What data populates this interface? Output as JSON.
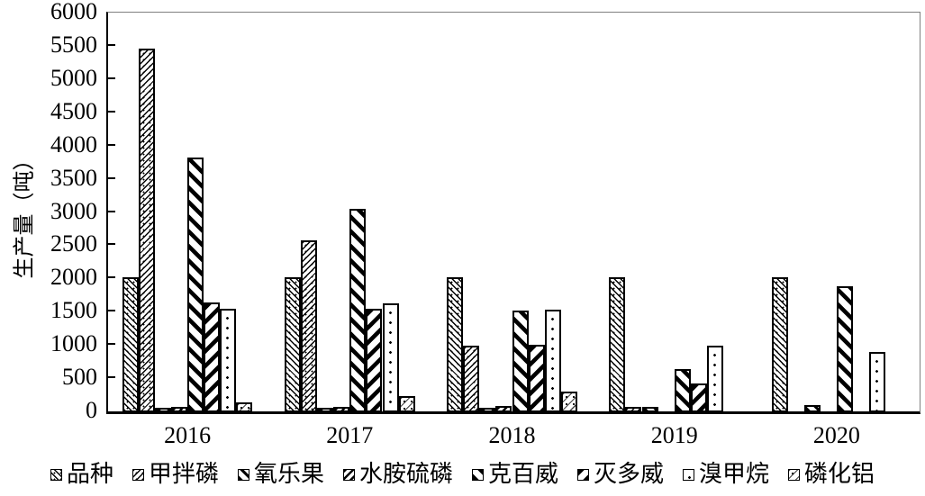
{
  "chart_data": {
    "type": "bar",
    "title": "",
    "xlabel": "",
    "ylabel": "生产量（吨）",
    "categories": [
      "2016",
      "2017",
      "2018",
      "2019",
      "2020"
    ],
    "series": [
      {
        "name": "品种",
        "pattern": "thin-backslash",
        "values": [
          2000,
          2000,
          2000,
          2000,
          2000
        ]
      },
      {
        "name": "甲拌磷",
        "pattern": "thin-slash",
        "values": [
          5450,
          2560,
          980,
          60,
          0
        ]
      },
      {
        "name": "氧乐果",
        "pattern": "bold-backslash",
        "values": [
          30,
          30,
          40,
          60,
          80
        ]
      },
      {
        "name": "水胺硫磷",
        "pattern": "medium-slash",
        "values": [
          60,
          60,
          70,
          0,
          0
        ]
      },
      {
        "name": "克百威",
        "pattern": "wide-backslash",
        "values": [
          3800,
          3030,
          1500,
          620,
          1870
        ]
      },
      {
        "name": "灭多威",
        "pattern": "wide-slash",
        "values": [
          1620,
          1530,
          990,
          410,
          0
        ]
      },
      {
        "name": "溴甲烷",
        "pattern": "dots",
        "values": [
          1530,
          1610,
          1520,
          980,
          880
        ]
      },
      {
        "name": "磷化铝",
        "pattern": "light-slash-dots",
        "values": [
          120,
          220,
          290,
          0,
          0
        ]
      }
    ],
    "y_axis": {
      "min": 0,
      "max": 6000,
      "step": 500,
      "tick_labels": [
        "0",
        "500",
        "1000",
        "1500",
        "2000",
        "2500",
        "3000",
        "3500",
        "4000",
        "4500",
        "5000",
        "5500",
        "6000"
      ]
    },
    "legend_position": "bottom",
    "grid": false,
    "colors": {
      "bar_fill": "#ffffff",
      "pattern_ink": "#000000",
      "axis": "#000000",
      "frame": "#7f7f7f",
      "text": "#000000",
      "background": "#ffffff"
    }
  }
}
